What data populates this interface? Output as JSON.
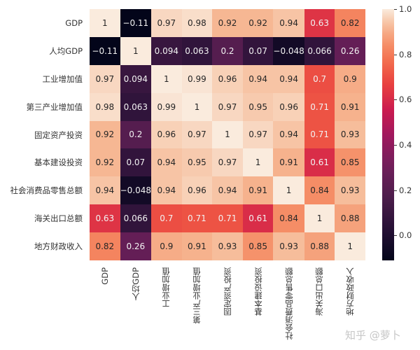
{
  "chart_data": {
    "type": "heatmap",
    "title": "",
    "colormap": "rocket",
    "annot": true,
    "rows": [
      "GDP",
      "人均GDP",
      "工业增加值",
      "第三产业增加值",
      "固定资产投资",
      "基本建设投资",
      "社会消费品零售总额",
      "海关出口总额",
      "地方财政收入"
    ],
    "columns": [
      "GDP",
      "人均GDP",
      "工业增加值",
      "第三产业增加值",
      "固定资产投资",
      "基本建设投资",
      "社会消费品零售总额",
      "海关出口总额",
      "地方财政收入"
    ],
    "values": [
      [
        1,
        -0.11,
        0.97,
        0.98,
        0.92,
        0.92,
        0.94,
        0.63,
        0.82
      ],
      [
        -0.11,
        1,
        0.094,
        0.063,
        0.2,
        0.07,
        -0.048,
        0.066,
        0.26
      ],
      [
        0.97,
        0.094,
        1,
        0.99,
        0.96,
        0.94,
        0.94,
        0.7,
        0.9
      ],
      [
        0.98,
        0.063,
        0.99,
        1,
        0.97,
        0.95,
        0.96,
        0.71,
        0.91
      ],
      [
        0.92,
        0.2,
        0.96,
        0.97,
        1,
        0.97,
        0.94,
        0.71,
        0.93
      ],
      [
        0.92,
        0.07,
        0.94,
        0.95,
        0.97,
        1,
        0.91,
        0.61,
        0.85
      ],
      [
        0.94,
        -0.048,
        0.94,
        0.96,
        0.94,
        0.91,
        1,
        0.84,
        0.93
      ],
      [
        0.63,
        0.066,
        0.7,
        0.71,
        0.71,
        0.61,
        0.84,
        1,
        0.88
      ],
      [
        0.82,
        0.26,
        0.9,
        0.91,
        0.93,
        0.85,
        0.93,
        0.88,
        1
      ]
    ],
    "colorbar": {
      "ticks": [
        "1.0",
        "0.8",
        "0.6",
        "0.4",
        "0.2",
        "0.0"
      ],
      "range": [
        -0.11,
        1.0
      ]
    }
  },
  "watermark": "知乎 @萝卜"
}
